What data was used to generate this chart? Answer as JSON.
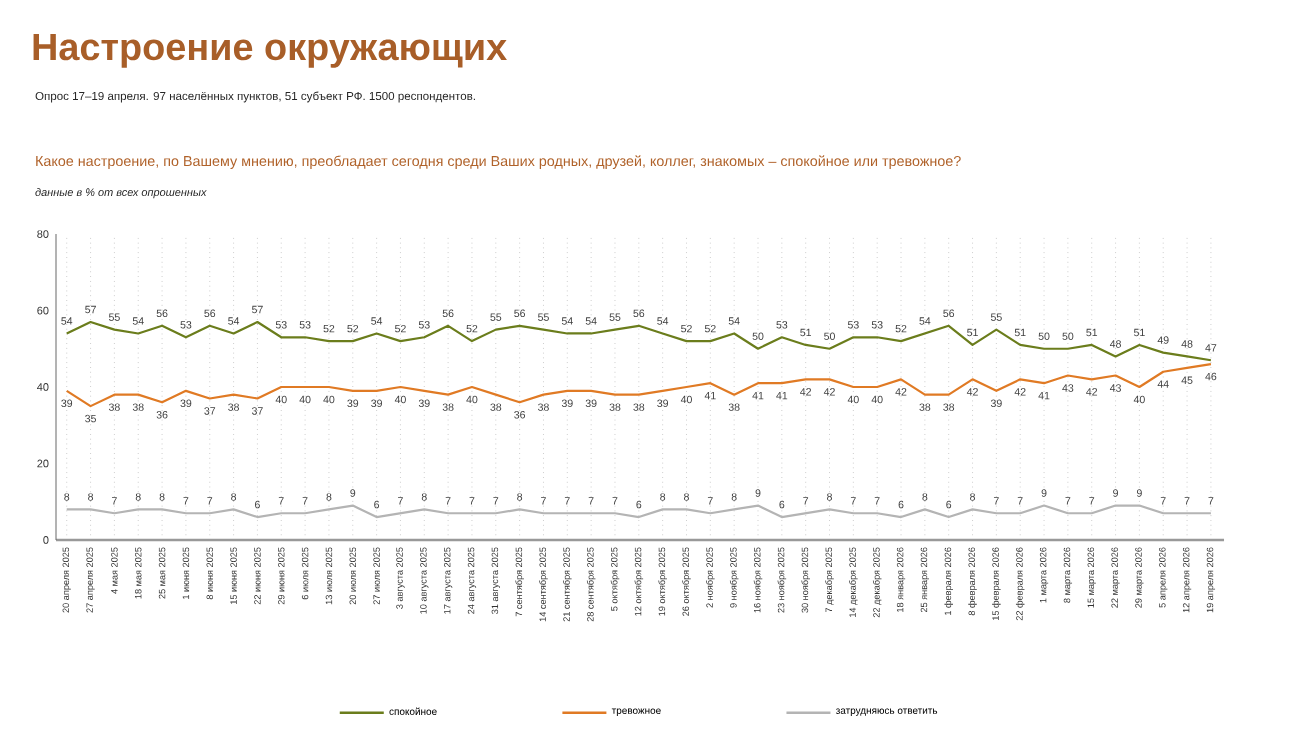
{
  "chart_data": {
    "type": "line",
    "title": "Настроение окружающих",
    "subtitle": "Опрос 17–19 апреля. 97 населённых пунктов, 51 субъект РФ. 1500 респондентов.",
    "annotations": [
      "Какое настроение, по Вашему мнению, преобладает сегодня среди Ваших родных, друзей, коллег, знакомых – спокойное или тревожное?",
      "данные в % от всех опрошенных"
    ],
    "categories": [
      "20 апреля 2025",
      "27 апреля 2025",
      "4 мая 2025",
      "18 мая 2025",
      "25 мая 2025",
      "1 июня 2025",
      "8 июня 2025",
      "15 июня 2025",
      "22 июня 2025",
      "29 июня 2025",
      "6 июля 2025",
      "13 июля 2025",
      "20 июля 2025",
      "27 июля 2025",
      "3 августа 2025",
      "10 августа 2025",
      "17 августа 2025",
      "24 августа 2025",
      "31 августа 2025",
      "7 сентября 2025",
      "14 сентября 2025",
      "21 сентября 2025",
      "28 сентября 2025",
      "5 октября 2025",
      "12 октября 2025",
      "19 октября 2025",
      "26 октября 2025",
      "2 ноября 2025",
      "9 ноября 2025",
      "16 ноября 2025",
      "23 ноября 2025",
      "30 ноября 2025",
      "7 декабря 2025",
      "14 декабря 2025",
      "22 декабря 2025",
      "18 января 2026",
      "25 января 2026",
      "1 февраля 2026",
      "8 февраля 2026",
      "15 февраля 2026",
      "22 февраля 2026",
      "1 марта 2026",
      "8 марта 2026",
      "15 марта 2026",
      "22 марта 2026",
      "29 марта 2026",
      "5 апреля 2026",
      "12 апреля 2026",
      "19 апреля 2026"
    ],
    "series": [
      {
        "name": "спокойное",
        "color": "#6b7d1c",
        "values": [
          54,
          57,
          55,
          54,
          56,
          53,
          56,
          54,
          57,
          53,
          53,
          52,
          52,
          54,
          52,
          53,
          56,
          52,
          55,
          56,
          55,
          54,
          54,
          55,
          56,
          54,
          52,
          52,
          54,
          50,
          53,
          51,
          50,
          53,
          53,
          52,
          54,
          56,
          51,
          55,
          51,
          50,
          50,
          51,
          48,
          51,
          49,
          48,
          47
        ]
      },
      {
        "name": "тревожное",
        "color": "#e07a24",
        "values": [
          39,
          35,
          38,
          38,
          36,
          39,
          37,
          38,
          37,
          40,
          40,
          40,
          39,
          39,
          40,
          39,
          38,
          40,
          38,
          36,
          38,
          39,
          39,
          38,
          38,
          39,
          40,
          41,
          38,
          41,
          41,
          42,
          42,
          40,
          40,
          42,
          38,
          38,
          42,
          39,
          42,
          41,
          43,
          42,
          43,
          40,
          44,
          45,
          46
        ]
      },
      {
        "name": "затрудняюсь ответить",
        "color": "#b4b4b4",
        "values": [
          8,
          8,
          7,
          8,
          8,
          7,
          7,
          8,
          6,
          7,
          7,
          8,
          9,
          6,
          7,
          8,
          7,
          7,
          7,
          8,
          7,
          7,
          7,
          7,
          6,
          8,
          8,
          7,
          8,
          9,
          6,
          7,
          8,
          7,
          7,
          6,
          8,
          6,
          8,
          7,
          7,
          9,
          7,
          7,
          9,
          9,
          7,
          7,
          7
        ]
      }
    ],
    "ylim": [
      0,
      80
    ],
    "yticks": [
      0,
      20,
      40,
      60,
      80
    ],
    "grid": "x",
    "legend": "bottom",
    "data_labels": true,
    "marker": "none",
    "line_style": "solid"
  }
}
